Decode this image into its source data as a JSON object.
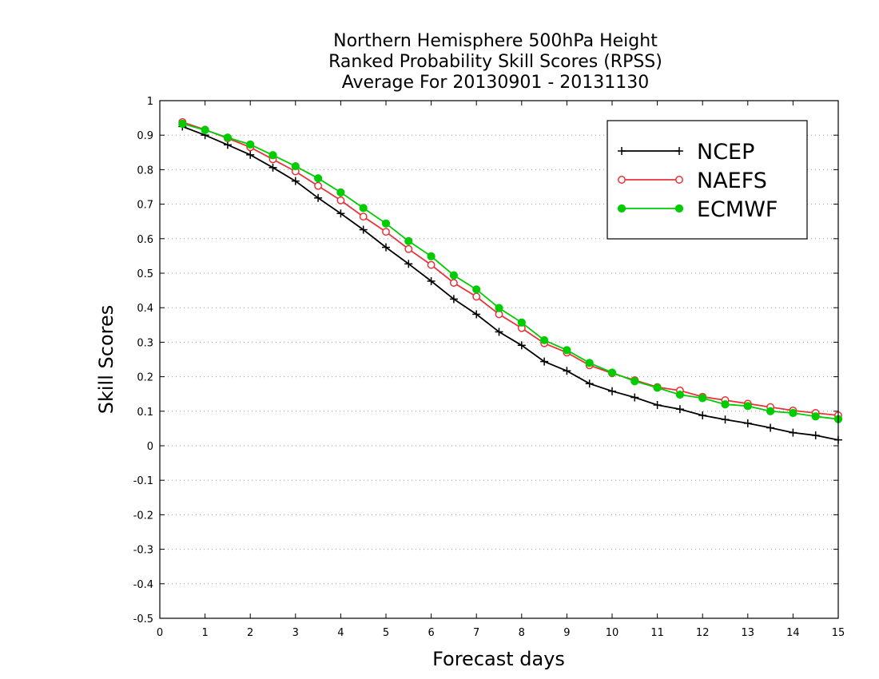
{
  "chart_data": {
    "type": "line",
    "title_lines": [
      "Northern Hemisphere 500hPa Height",
      "Ranked Probability Skill Scores (RPSS)",
      "Average For 20130901 - 20131130"
    ],
    "xlabel": "Forecast days",
    "ylabel": "Skill Scores",
    "xlim": [
      0,
      15
    ],
    "ylim": [
      -0.5,
      1
    ],
    "x_ticks": [
      0,
      1,
      2,
      3,
      4,
      5,
      6,
      7,
      8,
      9,
      10,
      11,
      12,
      13,
      14,
      15
    ],
    "y_ticks": [
      -0.5,
      -0.4,
      -0.3,
      -0.2,
      -0.1,
      0,
      0.1,
      0.2,
      0.3,
      0.4,
      0.5,
      0.6,
      0.7,
      0.8,
      0.9,
      1
    ],
    "grid": "horizontal dotted",
    "legend_position": "top-right",
    "x": [
      0.5,
      1,
      1.5,
      2,
      2.5,
      3,
      3.5,
      4,
      4.5,
      5,
      5.5,
      6,
      6.5,
      7,
      7.5,
      8,
      8.5,
      9,
      9.5,
      10,
      10.5,
      11,
      11.5,
      12,
      12.5,
      13,
      13.5,
      14,
      14.5,
      15
    ],
    "series": [
      {
        "name": "NCEP",
        "color": "#000000",
        "marker": "plus",
        "values": [
          0.925,
          0.9,
          0.872,
          0.843,
          0.806,
          0.767,
          0.718,
          0.673,
          0.626,
          0.575,
          0.527,
          0.477,
          0.425,
          0.381,
          0.33,
          0.291,
          0.244,
          0.217,
          0.18,
          0.158,
          0.14,
          0.118,
          0.106,
          0.088,
          0.076,
          0.065,
          0.052,
          0.038,
          0.03,
          0.017
        ]
      },
      {
        "name": "NAEFS",
        "color": "#e8333a",
        "marker": "open-circle",
        "values": [
          0.938,
          0.916,
          0.891,
          0.865,
          0.83,
          0.795,
          0.753,
          0.711,
          0.664,
          0.62,
          0.57,
          0.524,
          0.472,
          0.432,
          0.381,
          0.341,
          0.297,
          0.27,
          0.233,
          0.21,
          0.19,
          0.17,
          0.16,
          0.142,
          0.132,
          0.122,
          0.112,
          0.102,
          0.095,
          0.088
        ]
      },
      {
        "name": "ECMWF",
        "color": "#00cc00",
        "marker": "filled-circle",
        "values": [
          0.933,
          0.915,
          0.893,
          0.873,
          0.842,
          0.81,
          0.775,
          0.734,
          0.689,
          0.644,
          0.593,
          0.549,
          0.494,
          0.453,
          0.399,
          0.357,
          0.306,
          0.277,
          0.24,
          0.212,
          0.187,
          0.168,
          0.148,
          0.138,
          0.12,
          0.115,
          0.1,
          0.095,
          0.085,
          0.077
        ]
      }
    ]
  }
}
